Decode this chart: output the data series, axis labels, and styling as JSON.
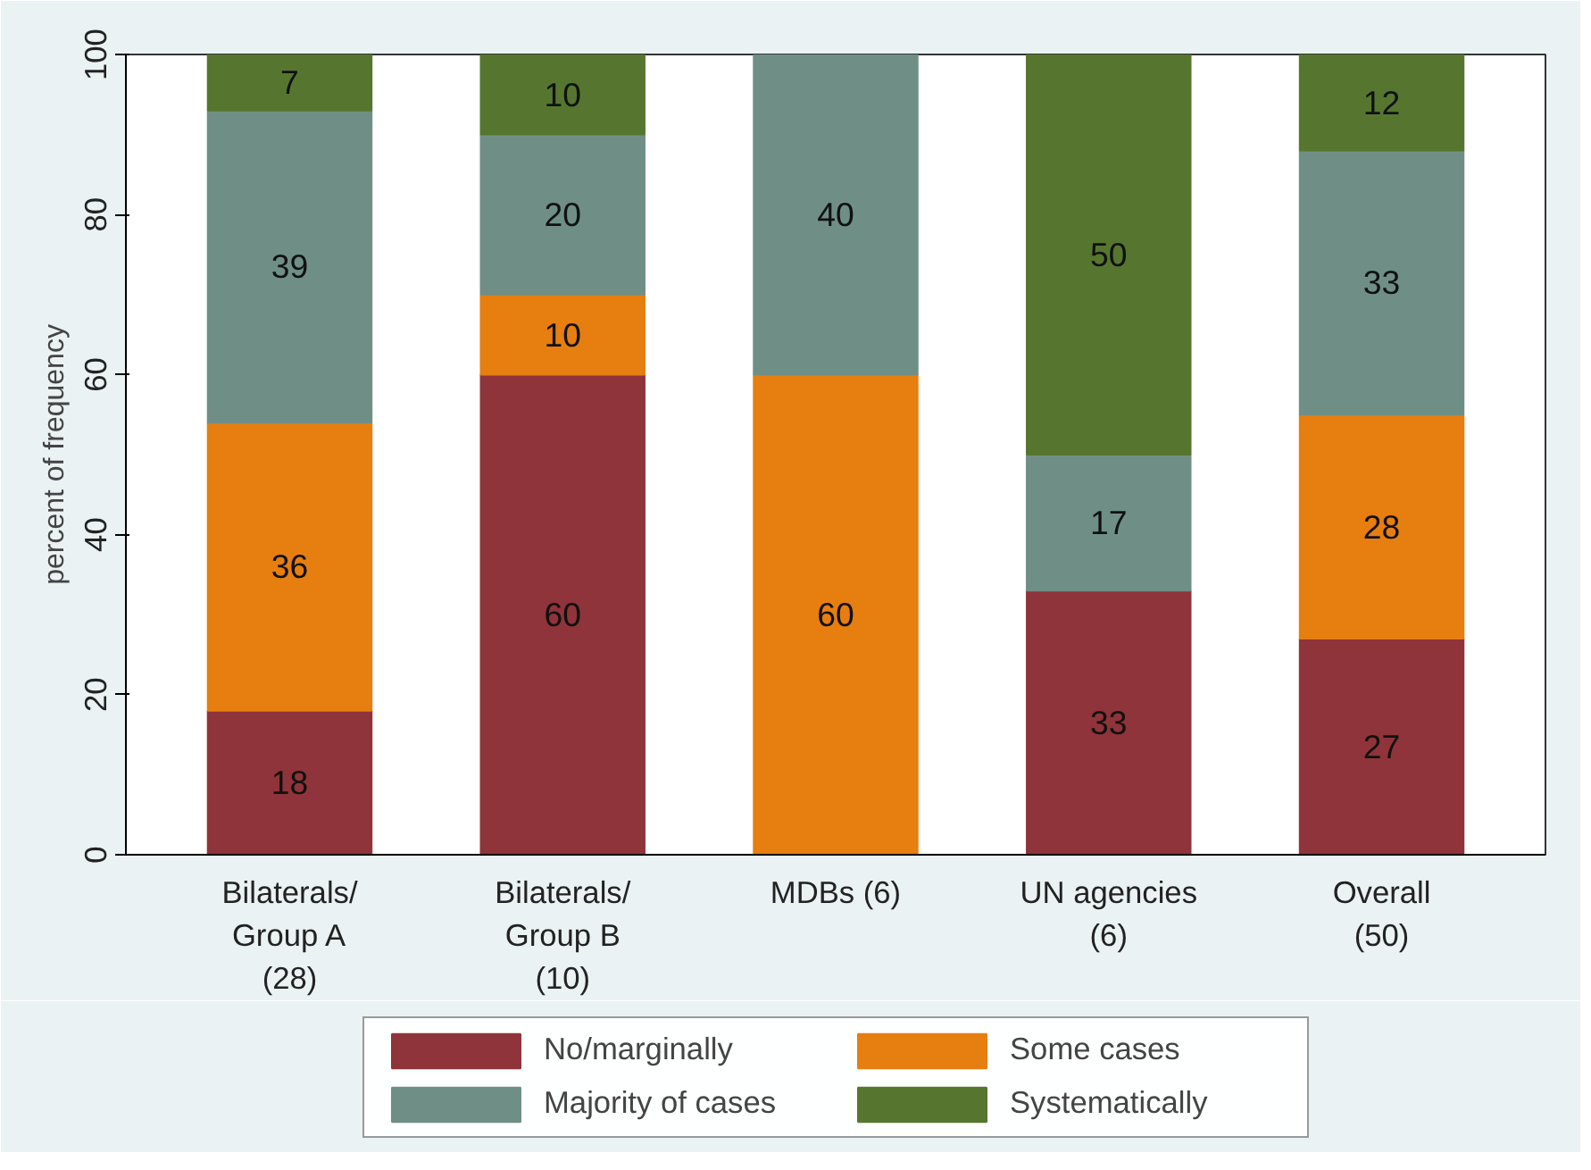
{
  "chart_data": {
    "type": "bar",
    "stacked": true,
    "ylabel": "percent of frequency",
    "categories": [
      "Bilaterals/\nGroup A\n(28)",
      "Bilaterals/\nGroup B\n(10)",
      "MDBs (6)",
      "UN agencies\n(6)",
      "Overall\n(50)"
    ],
    "series": [
      {
        "name": "No/marginally",
        "color": "#8f343a",
        "values": [
          18,
          60,
          null,
          33,
          27
        ]
      },
      {
        "name": "Some cases",
        "color": "#e67e10",
        "values": [
          36,
          10,
          60,
          null,
          28
        ]
      },
      {
        "name": "Majority of cases",
        "color": "#6f8f86",
        "values": [
          39,
          20,
          40,
          17,
          33
        ]
      },
      {
        "name": "Systematically",
        "color": "#56762f",
        "values": [
          7,
          10,
          null,
          50,
          12
        ]
      }
    ],
    "ylim": [
      0,
      100
    ],
    "yticks": [
      0,
      20,
      40,
      60,
      80,
      100
    ],
    "data_labels": true,
    "legend": "bottom",
    "grid": false
  }
}
